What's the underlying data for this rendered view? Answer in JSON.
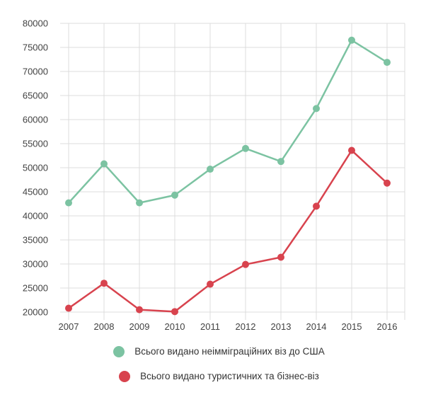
{
  "chart_data": {
    "type": "line",
    "title": "",
    "xlabel": "",
    "ylabel": "",
    "categories": [
      "2007",
      "2008",
      "2009",
      "2010",
      "2011",
      "2012",
      "2013",
      "2014",
      "2015",
      "2016"
    ],
    "series": [
      {
        "name": "Всього видано неімміграційних віз до США",
        "color": "#7cc3a2",
        "values": [
          42700,
          50800,
          42700,
          44300,
          49700,
          54000,
          51300,
          62300,
          76500,
          71900
        ]
      },
      {
        "name": "Всього видано туристичних та бізнес-віз",
        "color": "#d8434e",
        "values": [
          20800,
          26000,
          20500,
          20100,
          25800,
          29900,
          31400,
          42000,
          53600,
          46800
        ]
      }
    ],
    "ylim": [
      20000,
      80000
    ],
    "ytick": 5000,
    "grid": true,
    "grid_color": "#dcdcdc",
    "tick_color": "#424242",
    "legend_position": "bottom"
  }
}
